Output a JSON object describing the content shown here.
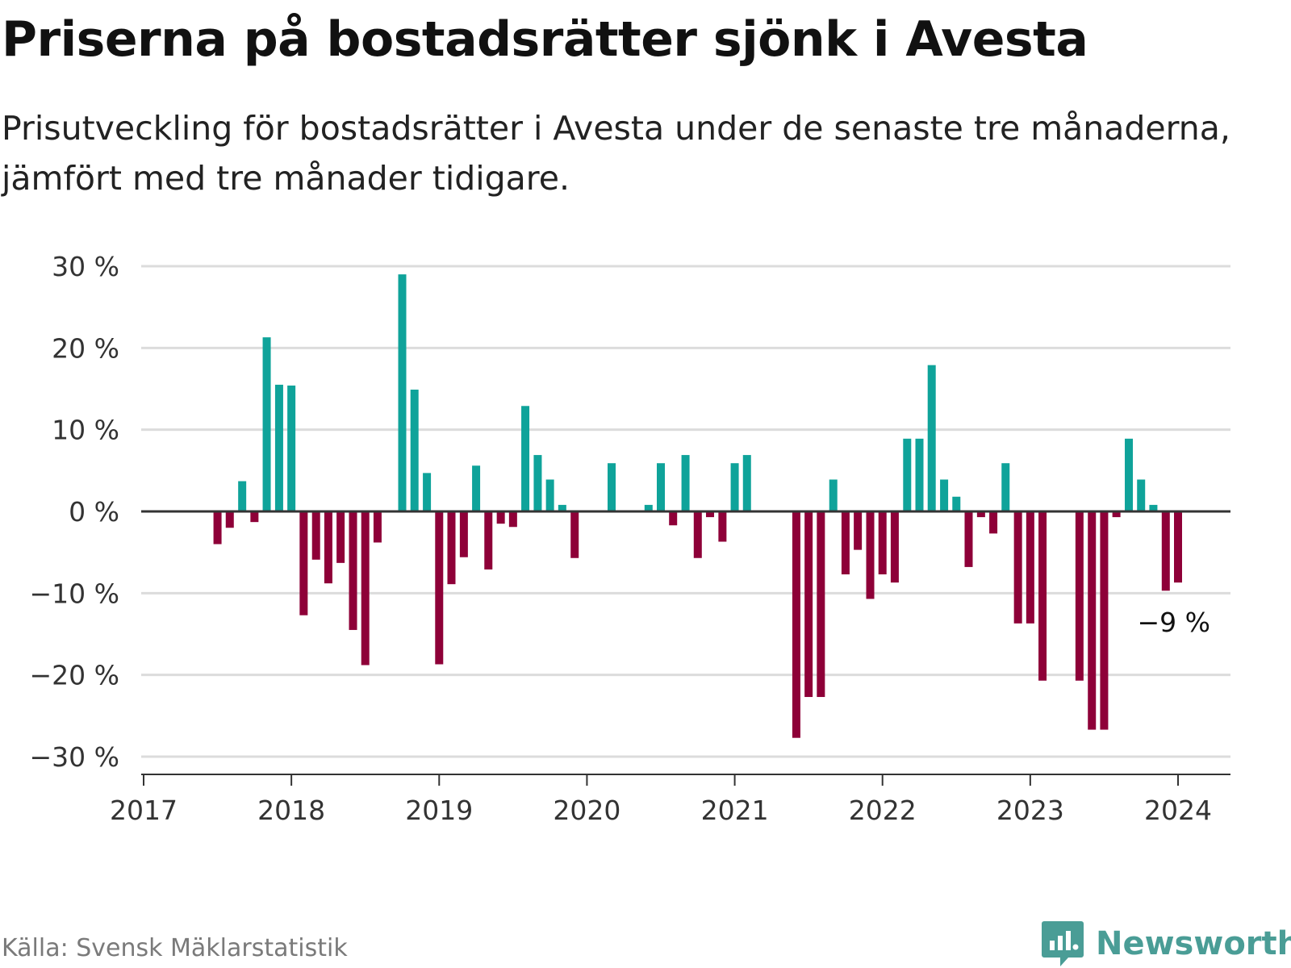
{
  "header": {
    "title": "Priserna på bostadsrätter sjönk i Avesta",
    "subtitle": "Prisutveckling för bostadsrätter i Avesta under de senaste tre månaderna, jämfört med tre månader tidigare."
  },
  "footer": {
    "source": "Källa: Svensk Mäklarstatistik",
    "brand": "Newsworthy"
  },
  "colors": {
    "positive": "#0fa39a",
    "negative": "#8e0038",
    "gridline": "#dcdcdc",
    "zero_line": "#333333",
    "logo": "#4a9d96"
  },
  "chart_data": {
    "type": "bar",
    "title": "Priserna på bostadsrätter sjönk i Avesta",
    "xlabel": "",
    "ylabel": "",
    "ylim": [
      -30,
      30
    ],
    "xlim": [
      2017.0,
      2024.375
    ],
    "grid": true,
    "y_ticks": [
      30,
      20,
      10,
      0,
      -10,
      -20,
      -30
    ],
    "y_tick_labels": [
      "30 %",
      "20 %",
      "10 %",
      "0 %",
      "−10 %",
      "−20 %",
      "−30 %"
    ],
    "x_ticks": [
      2017,
      2018,
      2019,
      2020,
      2021,
      2022,
      2023,
      2024
    ],
    "x_tick_labels": [
      "2017",
      "2018",
      "2019",
      "2020",
      "2021",
      "2022",
      "2023",
      "2024"
    ],
    "annotation": {
      "text": "−9 %",
      "x": 2024.0,
      "y": -9
    },
    "points": [
      {
        "x": 2017.5,
        "y": -4
      },
      {
        "x": 2017.583,
        "y": -2
      },
      {
        "x": 2017.667,
        "y": 3.7
      },
      {
        "x": 2017.75,
        "y": -1.3
      },
      {
        "x": 2017.833,
        "y": 21.3
      },
      {
        "x": 2017.917,
        "y": 15.5
      },
      {
        "x": 2018.0,
        "y": 15.4
      },
      {
        "x": 2018.083,
        "y": -12.7
      },
      {
        "x": 2018.167,
        "y": -5.9
      },
      {
        "x": 2018.25,
        "y": -8.8
      },
      {
        "x": 2018.333,
        "y": -6.3
      },
      {
        "x": 2018.417,
        "y": -14.5
      },
      {
        "x": 2018.5,
        "y": -18.8
      },
      {
        "x": 2018.583,
        "y": -3.8
      },
      {
        "x": 2018.75,
        "y": 29
      },
      {
        "x": 2018.833,
        "y": 14.9
      },
      {
        "x": 2018.917,
        "y": 4.7
      },
      {
        "x": 2019.0,
        "y": -18.7
      },
      {
        "x": 2019.083,
        "y": -8.9
      },
      {
        "x": 2019.167,
        "y": -5.6
      },
      {
        "x": 2019.25,
        "y": 5.6
      },
      {
        "x": 2019.333,
        "y": -7.1
      },
      {
        "x": 2019.417,
        "y": -1.5
      },
      {
        "x": 2019.5,
        "y": -1.9
      },
      {
        "x": 2019.583,
        "y": 12.9
      },
      {
        "x": 2019.667,
        "y": 6.9
      },
      {
        "x": 2019.75,
        "y": 3.9
      },
      {
        "x": 2019.833,
        "y": 0.8
      },
      {
        "x": 2019.917,
        "y": -5.7
      },
      {
        "x": 2020.167,
        "y": 5.9
      },
      {
        "x": 2020.417,
        "y": 0.8
      },
      {
        "x": 2020.5,
        "y": 5.9
      },
      {
        "x": 2020.583,
        "y": -1.7
      },
      {
        "x": 2020.667,
        "y": 6.9
      },
      {
        "x": 2020.75,
        "y": -5.7
      },
      {
        "x": 2020.833,
        "y": -0.7
      },
      {
        "x": 2020.917,
        "y": -3.7
      },
      {
        "x": 2021.0,
        "y": 5.9
      },
      {
        "x": 2021.083,
        "y": 6.9
      },
      {
        "x": 2021.417,
        "y": -27.7
      },
      {
        "x": 2021.5,
        "y": -22.7
      },
      {
        "x": 2021.583,
        "y": -22.7
      },
      {
        "x": 2021.667,
        "y": 3.9
      },
      {
        "x": 2021.75,
        "y": -7.7
      },
      {
        "x": 2021.833,
        "y": -4.7
      },
      {
        "x": 2021.917,
        "y": -10.7
      },
      {
        "x": 2022.0,
        "y": -7.7
      },
      {
        "x": 2022.083,
        "y": -8.7
      },
      {
        "x": 2022.167,
        "y": 8.9
      },
      {
        "x": 2022.25,
        "y": 8.9
      },
      {
        "x": 2022.333,
        "y": 17.9
      },
      {
        "x": 2022.417,
        "y": 3.9
      },
      {
        "x": 2022.5,
        "y": 1.8
      },
      {
        "x": 2022.583,
        "y": -6.8
      },
      {
        "x": 2022.667,
        "y": -0.7
      },
      {
        "x": 2022.75,
        "y": -2.7
      },
      {
        "x": 2022.833,
        "y": 5.9
      },
      {
        "x": 2022.917,
        "y": -13.7
      },
      {
        "x": 2023.0,
        "y": -13.7
      },
      {
        "x": 2023.083,
        "y": -20.7
      },
      {
        "x": 2023.333,
        "y": -20.7
      },
      {
        "x": 2023.417,
        "y": -26.7
      },
      {
        "x": 2023.5,
        "y": -26.7
      },
      {
        "x": 2023.583,
        "y": -0.7
      },
      {
        "x": 2023.667,
        "y": 8.9
      },
      {
        "x": 2023.75,
        "y": 3.9
      },
      {
        "x": 2023.833,
        "y": 0.8
      },
      {
        "x": 2023.917,
        "y": -9.7
      },
      {
        "x": 2024.0,
        "y": -8.7
      }
    ]
  }
}
